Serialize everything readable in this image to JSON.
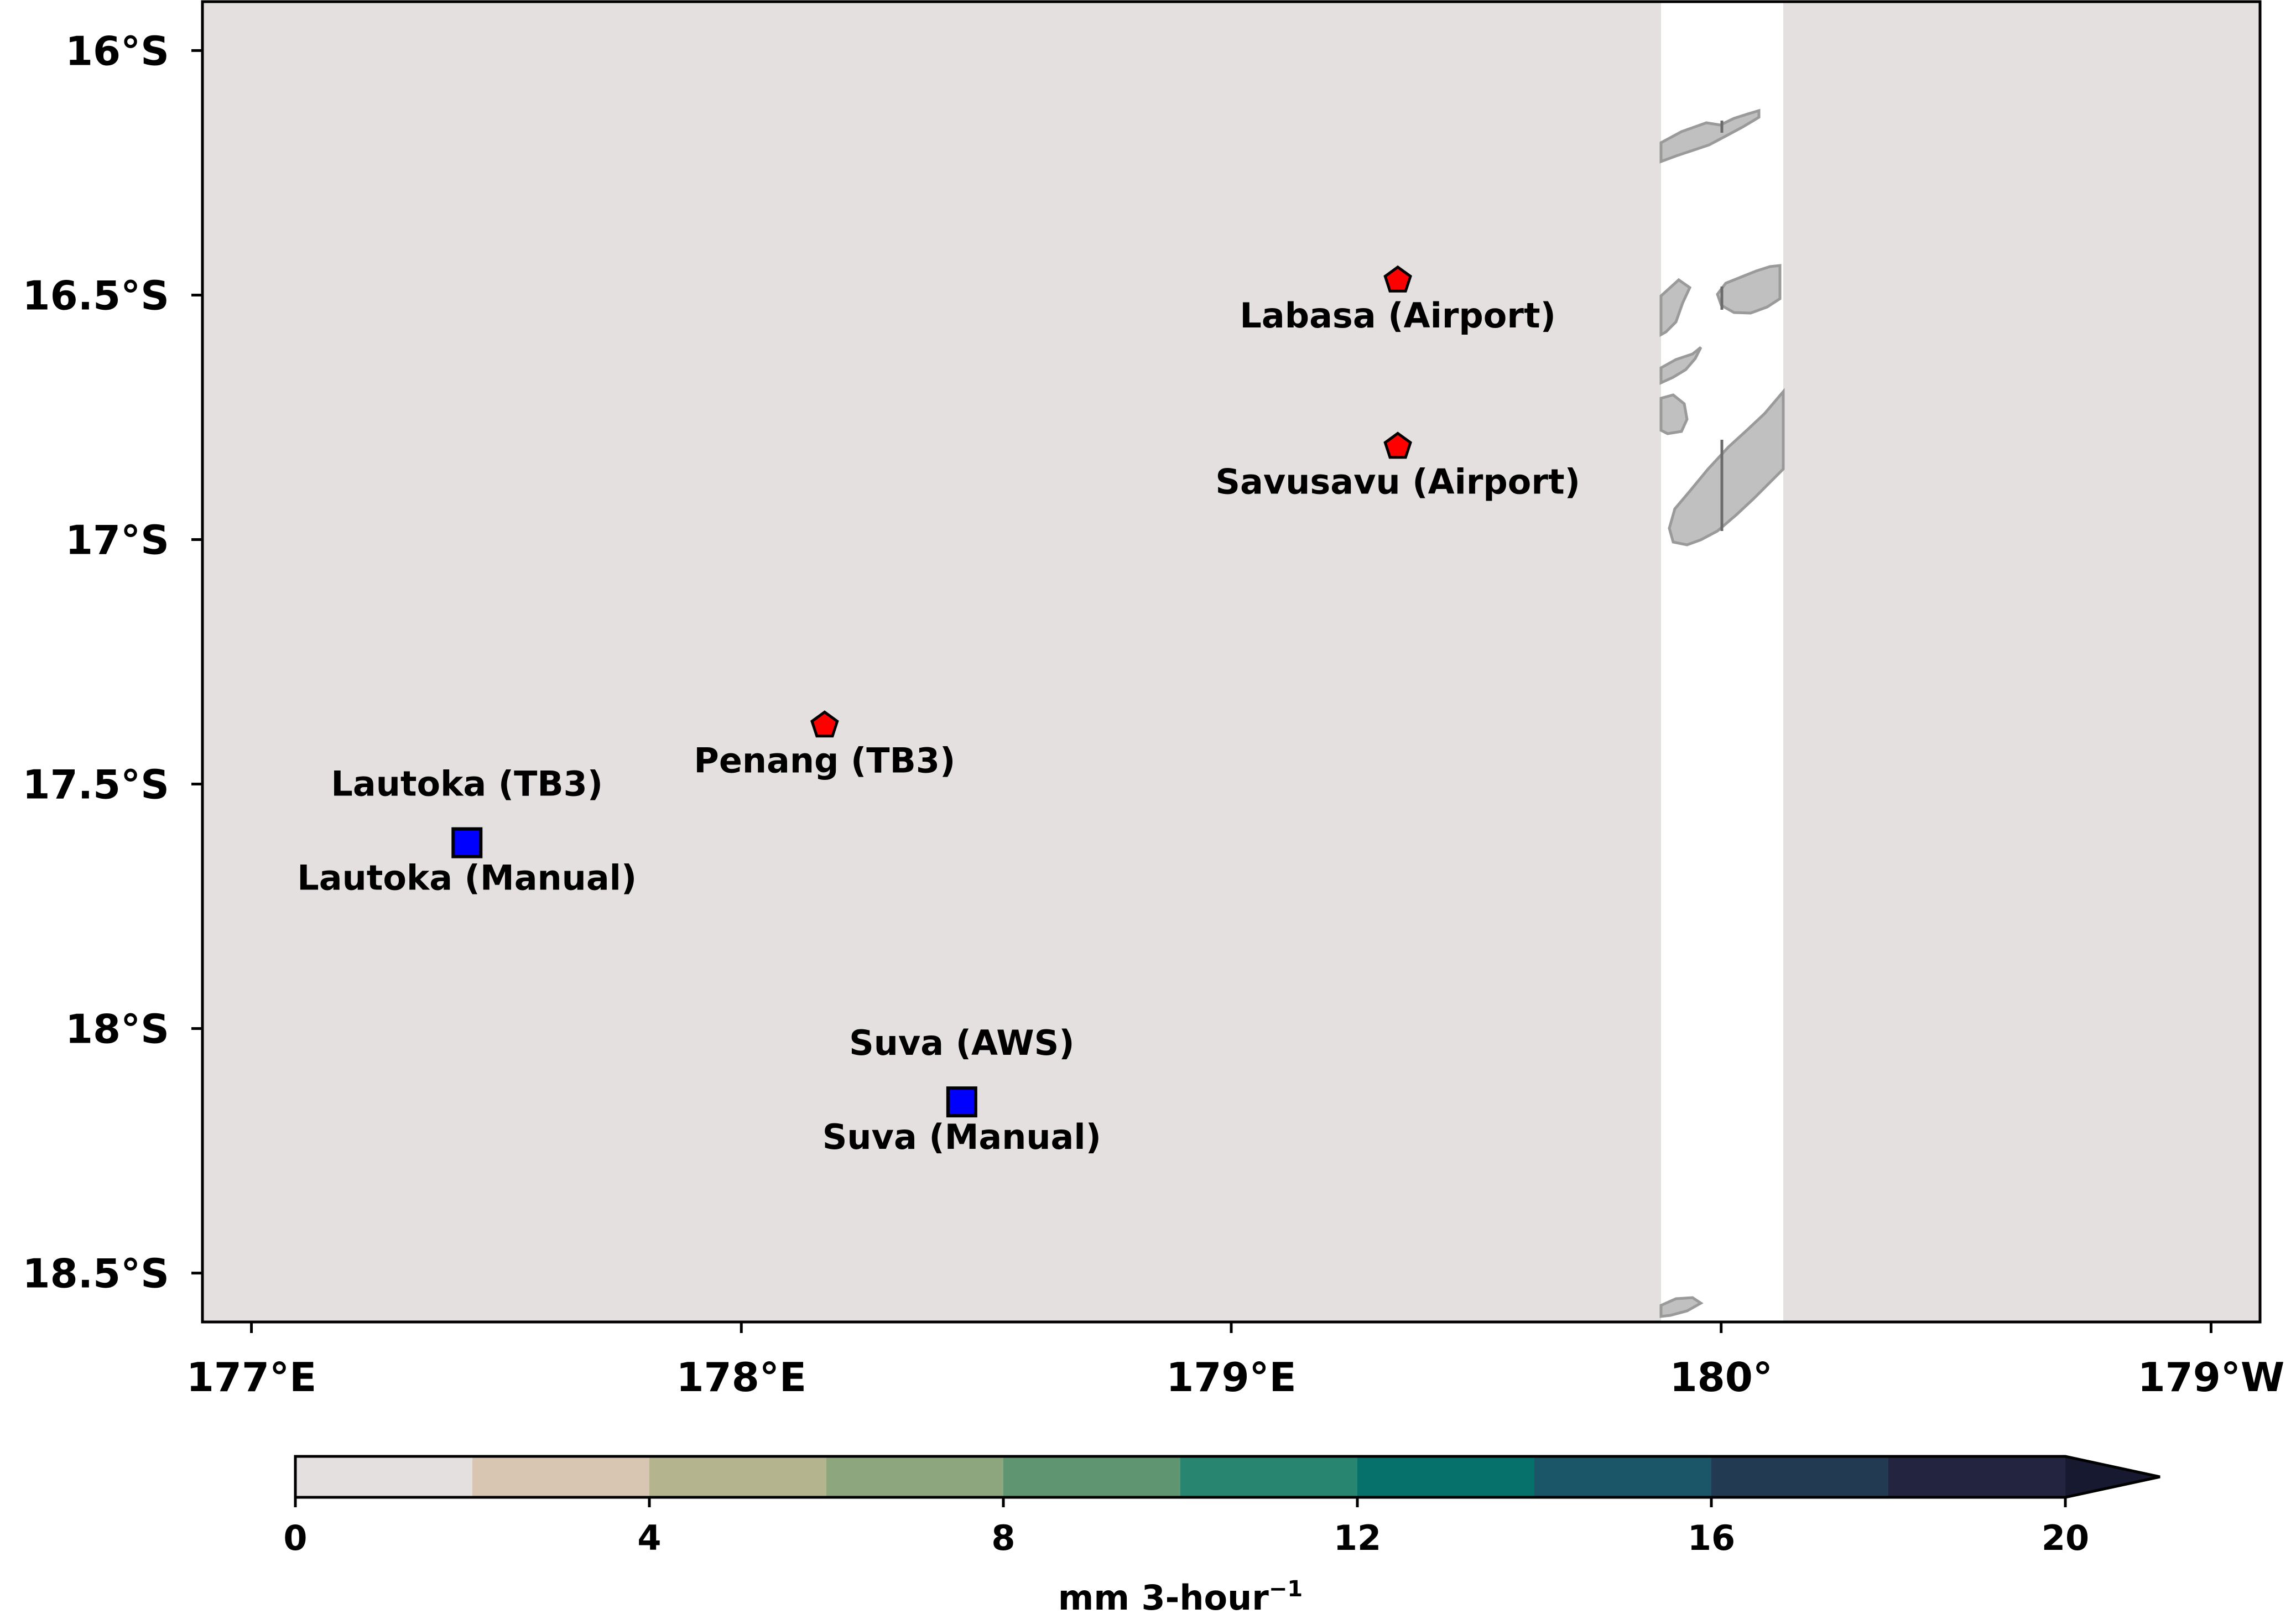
{
  "map": {
    "background_color": "#e4e0df",
    "land_color": "#c0c0c0",
    "station_marker_colors": {
      "pentagon": "#ff0000",
      "square": "#0000ff"
    }
  },
  "axes": {
    "x": {
      "range": [
        176.9,
        181.1
      ],
      "ticks": [
        {
          "value": 177,
          "label": "177°E"
        },
        {
          "value": 178,
          "label": "178°E"
        },
        {
          "value": 179,
          "label": "179°E"
        },
        {
          "value": 180,
          "label": "180°"
        },
        {
          "value": 181,
          "label": "179°W"
        }
      ]
    },
    "y": {
      "range": [
        -18.6,
        -15.9
      ],
      "ticks": [
        {
          "value": -16.0,
          "label": "16°S"
        },
        {
          "value": -16.5,
          "label": "16.5°S"
        },
        {
          "value": -17.0,
          "label": "17°S"
        },
        {
          "value": -17.5,
          "label": "17.5°S"
        },
        {
          "value": -18.0,
          "label": "18°S"
        },
        {
          "value": -18.5,
          "label": "18.5°S"
        }
      ]
    }
  },
  "stations": [
    {
      "name": "Labasa (Airport)",
      "lon": 179.34,
      "lat": -16.47,
      "marker": "pentagon"
    },
    {
      "name": "Savusavu (Airport)",
      "lon": 179.34,
      "lat": -16.81,
      "marker": "pentagon"
    },
    {
      "name": "Penang (TB3)",
      "lon": 178.17,
      "lat": -17.38,
      "marker": "pentagon"
    },
    {
      "name": "Lautoka (TB3)",
      "lon": 177.44,
      "lat": -17.62,
      "marker": "square",
      "label_side": "above"
    },
    {
      "name": "Lautoka (Manual)",
      "lon": 177.44,
      "lat": -17.62,
      "marker": "none",
      "label_side": "below"
    },
    {
      "name": "Suva (AWS)",
      "lon": 178.45,
      "lat": -18.15,
      "marker": "square",
      "label_side": "above"
    },
    {
      "name": "Suva (Manual)",
      "lon": 178.45,
      "lat": -18.15,
      "marker": "none",
      "label_side": "below"
    }
  ],
  "colorbar": {
    "label": "mm 3-hour",
    "label_superscript": "−1",
    "extend": "max",
    "levels": [
      0,
      2,
      4,
      6,
      8,
      10,
      12,
      14,
      16,
      18,
      20
    ],
    "colors": [
      "#e4e0df",
      "#d9c6b2",
      "#b4b58f",
      "#8ea67e",
      "#5f9671",
      "#278570",
      "#06716b",
      "#1a5568",
      "#233a53",
      "#222440"
    ],
    "extend_color": "#171931",
    "ticks": [
      0,
      4,
      8,
      12,
      16,
      20
    ]
  }
}
